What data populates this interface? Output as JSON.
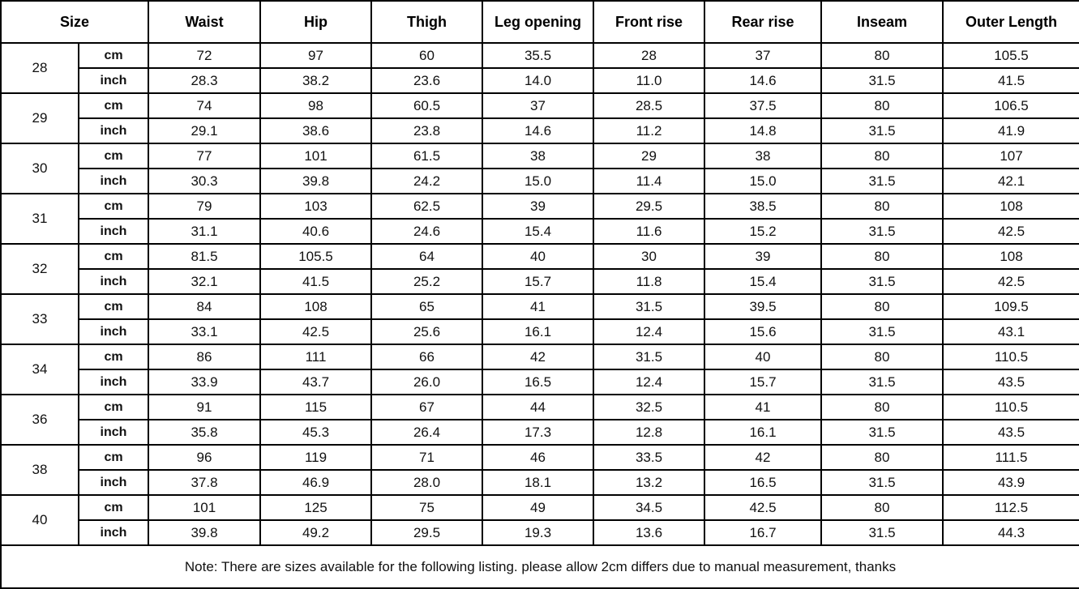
{
  "table": {
    "headers": [
      "Size",
      "Waist",
      "Hip",
      "Thigh",
      "Leg opening",
      "Front rise",
      "Rear rise",
      "Inseam",
      "Outer Length"
    ],
    "unit_labels": {
      "cm": "cm",
      "inch": "inch"
    },
    "rows": [
      {
        "size": "28",
        "cm": [
          "72",
          "97",
          "60",
          "35.5",
          "28",
          "37",
          "80",
          "105.5"
        ],
        "inch": [
          "28.3",
          "38.2",
          "23.6",
          "14.0",
          "11.0",
          "14.6",
          "31.5",
          "41.5"
        ]
      },
      {
        "size": "29",
        "cm": [
          "74",
          "98",
          "60.5",
          "37",
          "28.5",
          "37.5",
          "80",
          "106.5"
        ],
        "inch": [
          "29.1",
          "38.6",
          "23.8",
          "14.6",
          "11.2",
          "14.8",
          "31.5",
          "41.9"
        ]
      },
      {
        "size": "30",
        "cm": [
          "77",
          "101",
          "61.5",
          "38",
          "29",
          "38",
          "80",
          "107"
        ],
        "inch": [
          "30.3",
          "39.8",
          "24.2",
          "15.0",
          "11.4",
          "15.0",
          "31.5",
          "42.1"
        ]
      },
      {
        "size": "31",
        "cm": [
          "79",
          "103",
          "62.5",
          "39",
          "29.5",
          "38.5",
          "80",
          "108"
        ],
        "inch": [
          "31.1",
          "40.6",
          "24.6",
          "15.4",
          "11.6",
          "15.2",
          "31.5",
          "42.5"
        ]
      },
      {
        "size": "32",
        "cm": [
          "81.5",
          "105.5",
          "64",
          "40",
          "30",
          "39",
          "80",
          "108"
        ],
        "inch": [
          "32.1",
          "41.5",
          "25.2",
          "15.7",
          "11.8",
          "15.4",
          "31.5",
          "42.5"
        ]
      },
      {
        "size": "33",
        "cm": [
          "84",
          "108",
          "65",
          "41",
          "31.5",
          "39.5",
          "80",
          "109.5"
        ],
        "inch": [
          "33.1",
          "42.5",
          "25.6",
          "16.1",
          "12.4",
          "15.6",
          "31.5",
          "43.1"
        ]
      },
      {
        "size": "34",
        "cm": [
          "86",
          "111",
          "66",
          "42",
          "31.5",
          "40",
          "80",
          "110.5"
        ],
        "inch": [
          "33.9",
          "43.7",
          "26.0",
          "16.5",
          "12.4",
          "15.7",
          "31.5",
          "43.5"
        ]
      },
      {
        "size": "36",
        "cm": [
          "91",
          "115",
          "67",
          "44",
          "32.5",
          "41",
          "80",
          "110.5"
        ],
        "inch": [
          "35.8",
          "45.3",
          "26.4",
          "17.3",
          "12.8",
          "16.1",
          "31.5",
          "43.5"
        ]
      },
      {
        "size": "38",
        "cm": [
          "96",
          "119",
          "71",
          "46",
          "33.5",
          "42",
          "80",
          "111.5"
        ],
        "inch": [
          "37.8",
          "46.9",
          "28.0",
          "18.1",
          "13.2",
          "16.5",
          "31.5",
          "43.9"
        ]
      },
      {
        "size": "40",
        "cm": [
          "101",
          "125",
          "75",
          "49",
          "34.5",
          "42.5",
          "80",
          "112.5"
        ],
        "inch": [
          "39.8",
          "49.2",
          "29.5",
          "19.3",
          "13.6",
          "16.7",
          "31.5",
          "44.3"
        ]
      }
    ],
    "note": "Note: There are sizes available for the following listing. please allow 2cm differs due to manual measurement, thanks"
  },
  "colors": {
    "background": "#ffffff",
    "border": "#000000",
    "text": "#111111"
  }
}
